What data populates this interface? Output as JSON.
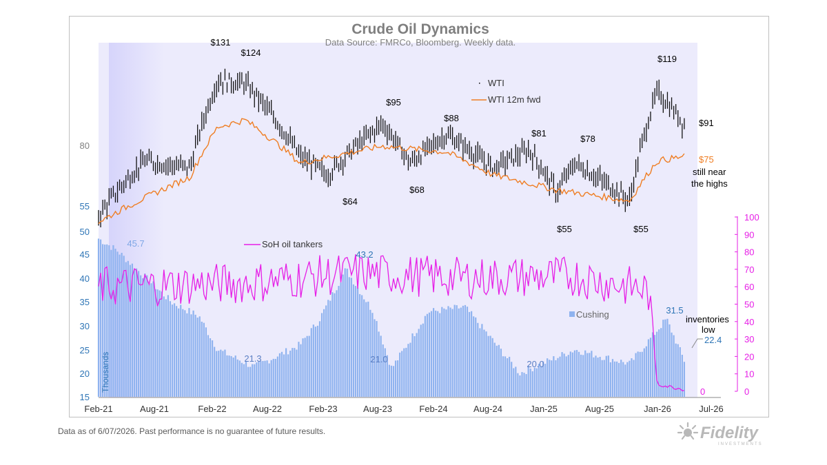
{
  "chart_data": {
    "type": "combo",
    "title": "Crude Oil Dynamics",
    "subtitle": "Data Source: FMRCo, Bloomberg.  Weekly data.",
    "x_ticks": [
      "Feb-21",
      "Aug-21",
      "Feb-22",
      "Aug-22",
      "Feb-23",
      "Aug-23",
      "Feb-24",
      "Aug-24",
      "Jan-25",
      "Aug-25",
      "Jan-26",
      "Jul-26"
    ],
    "upper_axis": {
      "scale": "log",
      "ticks": [
        "80",
        "55"
      ]
    },
    "left_axis": {
      "ticks": [
        "50",
        "45",
        "40",
        "35",
        "30",
        "25",
        "20",
        "15"
      ],
      "label": "Thousands"
    },
    "right_axis": {
      "ticks": [
        "100",
        "90",
        "80",
        "70",
        "60",
        "50",
        "40",
        "30",
        "20",
        "10",
        "0"
      ]
    },
    "legend": {
      "wti": "WTI",
      "wti_fwd": "WTI 12m fwd",
      "soh": "SoH oil tankers",
      "cushing": "Cushing"
    },
    "series": [
      {
        "name": "WTI",
        "type": "ohlc",
        "anchors": [
          [
            "2021-02",
            52
          ],
          [
            "2021-07",
            73
          ],
          [
            "2021-12",
            70
          ],
          [
            "2022-03",
            120
          ],
          [
            "2022-06",
            118
          ],
          [
            "2022-12",
            75
          ],
          [
            "2023-03",
            67
          ],
          [
            "2023-09",
            92
          ],
          [
            "2023-12",
            72
          ],
          [
            "2024-04",
            86
          ],
          [
            "2024-09",
            70
          ],
          [
            "2025-01",
            78
          ],
          [
            "2025-04",
            60
          ],
          [
            "2025-06",
            72
          ],
          [
            "2025-12",
            57
          ],
          [
            "2026-03",
            112
          ],
          [
            "2026-06",
            91
          ]
        ]
      },
      {
        "name": "WTI 12m fwd",
        "type": "line",
        "anchors": [
          [
            "2021-02",
            50
          ],
          [
            "2021-12",
            66
          ],
          [
            "2022-03",
            90
          ],
          [
            "2022-06",
            94
          ],
          [
            "2022-12",
            72
          ],
          [
            "2023-09",
            80
          ],
          [
            "2024-04",
            77
          ],
          [
            "2024-09",
            67
          ],
          [
            "2025-04",
            61
          ],
          [
            "2025-12",
            57
          ],
          [
            "2026-03",
            73
          ],
          [
            "2026-06",
            75
          ]
        ]
      },
      {
        "name": "SoH oil tankers",
        "type": "line",
        "axis": "right",
        "anchors": [
          [
            "2021-02",
            60
          ],
          [
            "2022-06",
            62
          ],
          [
            "2023-06",
            68
          ],
          [
            "2024-06",
            65
          ],
          [
            "2025-06",
            66
          ],
          [
            "2026-02",
            58
          ],
          [
            "2026-03",
            3
          ],
          [
            "2026-06",
            0
          ]
        ]
      },
      {
        "name": "Cushing",
        "type": "bar",
        "axis": "left",
        "anchors": [
          [
            "2021-02",
            48.5
          ],
          [
            "2021-04",
            46
          ],
          [
            "2021-10",
            35
          ],
          [
            "2022-01",
            32
          ],
          [
            "2022-03",
            25
          ],
          [
            "2022-07",
            21.3
          ],
          [
            "2022-12",
            26
          ],
          [
            "2023-02",
            31
          ],
          [
            "2023-05",
            42
          ],
          [
            "2023-08",
            33
          ],
          [
            "2023-10",
            21.0
          ],
          [
            "2024-02",
            33
          ],
          [
            "2024-06",
            34
          ],
          [
            "2024-12",
            20.0
          ],
          [
            "2025-06",
            25
          ],
          [
            "2025-12",
            22
          ],
          [
            "2026-04",
            31.5
          ],
          [
            "2026-06",
            22.4
          ]
        ]
      }
    ],
    "annotations": {
      "peak_131": "$131",
      "peak_124": "$124",
      "peak_95": "$95",
      "peak_88": "$88",
      "peak_81": "$81",
      "peak_78": "$78",
      "peak_119": "$119",
      "last_91": "$91",
      "fwd_75": "$75",
      "still_near": "still near",
      "the_highs": "the highs",
      "low_64": "$64",
      "low_68": "$68",
      "low_55a": "$55",
      "low_55b": "$55",
      "cush_45_7": "45.7",
      "cush_43_2": "43.2",
      "cush_21_3": "21.3",
      "cush_21_0": "21.0",
      "cush_20_0": "20.0",
      "cush_31_5": "31.5",
      "cush_22_4": "22.4",
      "soh_0": "0",
      "inventories": "inventories",
      "low": "low"
    }
  },
  "footer": {
    "note": "Data as of 6/07/2026. Past performance is no guarantee of future results."
  },
  "brand": {
    "name": "Fidelity",
    "sub": "INVESTMENTS"
  }
}
